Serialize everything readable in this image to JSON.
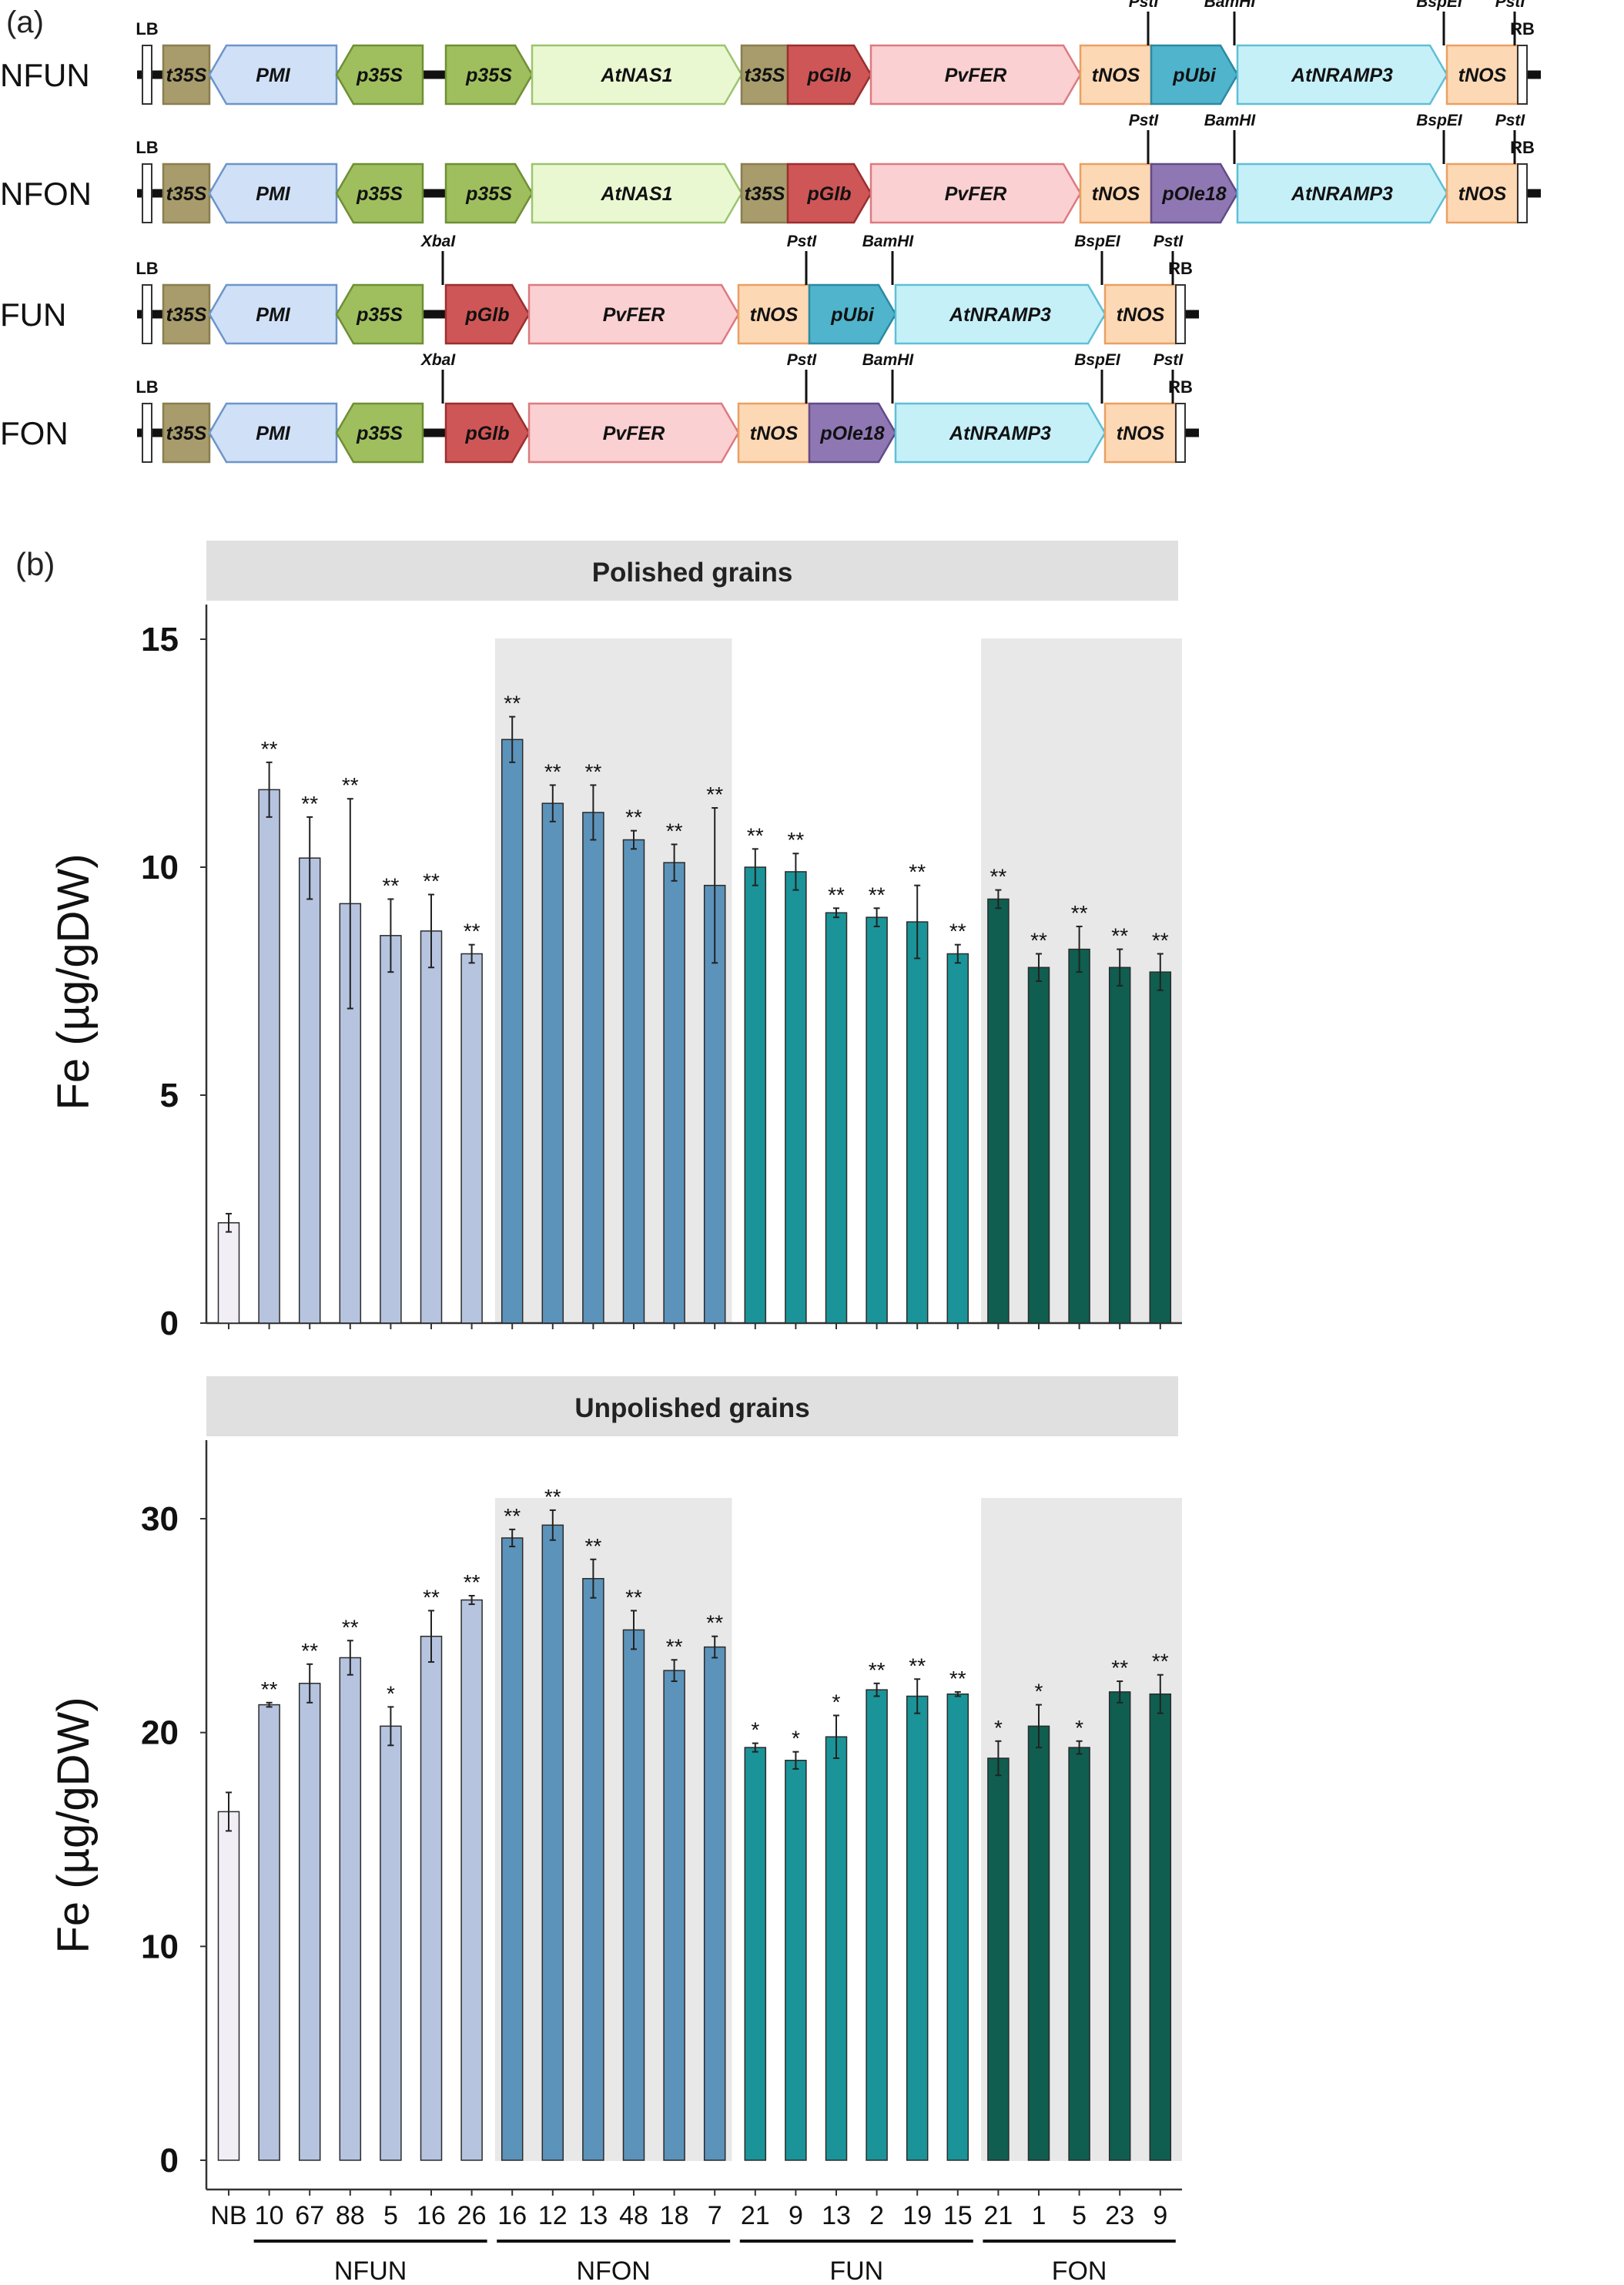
{
  "panel_a": {
    "label": "(a)",
    "constructs": [
      {
        "name": "NFUN",
        "elements": [
          {
            "label": "LB",
            "type": "border"
          },
          {
            "label": "t35S",
            "type": "t35s"
          },
          {
            "label": "PMI",
            "type": "pmi",
            "dir": "left"
          },
          {
            "label": "p35S",
            "type": "p35s",
            "dir": "left"
          },
          {
            "label": "p35S",
            "type": "p35s",
            "dir": "right"
          },
          {
            "label": "AtNAS1",
            "type": "nas",
            "dir": "right"
          },
          {
            "label": "t35S",
            "type": "t35s"
          },
          {
            "label": "pGlb",
            "type": "pglb",
            "dir": "right"
          },
          {
            "label": "PvFER",
            "type": "fer",
            "dir": "right"
          },
          {
            "label": "tNOS",
            "type": "tnos"
          },
          {
            "label": "pUbi",
            "type": "pubi",
            "dir": "right"
          },
          {
            "label": "AtNRAMP3",
            "type": "nramp",
            "dir": "right"
          },
          {
            "label": "tNOS",
            "type": "tnos"
          },
          {
            "label": "RB",
            "type": "border"
          }
        ],
        "sites": [
          "PstI",
          "BamHI",
          "BspEI",
          "PstI"
        ]
      },
      {
        "name": "NFON",
        "elements": [
          {
            "label": "LB",
            "type": "border"
          },
          {
            "label": "t35S",
            "type": "t35s"
          },
          {
            "label": "PMI",
            "type": "pmi",
            "dir": "left"
          },
          {
            "label": "p35S",
            "type": "p35s",
            "dir": "left"
          },
          {
            "label": "p35S",
            "type": "p35s",
            "dir": "right"
          },
          {
            "label": "AtNAS1",
            "type": "nas",
            "dir": "right"
          },
          {
            "label": "t35S",
            "type": "t35s"
          },
          {
            "label": "pGlb",
            "type": "pglb",
            "dir": "right"
          },
          {
            "label": "PvFER",
            "type": "fer",
            "dir": "right"
          },
          {
            "label": "tNOS",
            "type": "tnos"
          },
          {
            "label": "pOle18",
            "type": "pole",
            "dir": "right"
          },
          {
            "label": "AtNRAMP3",
            "type": "nramp",
            "dir": "right"
          },
          {
            "label": "tNOS",
            "type": "tnos"
          },
          {
            "label": "RB",
            "type": "border"
          }
        ],
        "sites": [
          "PstI",
          "BamHI",
          "BspEI",
          "PstI"
        ]
      },
      {
        "name": "FUN",
        "elements": [
          {
            "label": "LB",
            "type": "border"
          },
          {
            "label": "t35S",
            "type": "t35s"
          },
          {
            "label": "PMI",
            "type": "pmi",
            "dir": "left"
          },
          {
            "label": "p35S",
            "type": "p35s",
            "dir": "left"
          },
          {
            "label": "pGlb",
            "type": "pglb",
            "dir": "right"
          },
          {
            "label": "PvFER",
            "type": "fer",
            "dir": "right"
          },
          {
            "label": "tNOS",
            "type": "tnos"
          },
          {
            "label": "pUbi",
            "type": "pubi",
            "dir": "right"
          },
          {
            "label": "AtNRAMP3",
            "type": "nramp",
            "dir": "right"
          },
          {
            "label": "tNOS",
            "type": "tnos"
          },
          {
            "label": "RB",
            "type": "border"
          }
        ],
        "sites": [
          "XbaI",
          "PstI",
          "BamHI",
          "BspEI",
          "PstI"
        ]
      },
      {
        "name": "FON",
        "elements": [
          {
            "label": "LB",
            "type": "border"
          },
          {
            "label": "t35S",
            "type": "t35s"
          },
          {
            "label": "PMI",
            "type": "pmi",
            "dir": "left"
          },
          {
            "label": "p35S",
            "type": "p35s",
            "dir": "left"
          },
          {
            "label": "pGlb",
            "type": "pglb",
            "dir": "right"
          },
          {
            "label": "PvFER",
            "type": "fer",
            "dir": "right"
          },
          {
            "label": "tNOS",
            "type": "tnos"
          },
          {
            "label": "pOle18",
            "type": "pole",
            "dir": "right"
          },
          {
            "label": "AtNRAMP3",
            "type": "nramp",
            "dir": "right"
          },
          {
            "label": "tNOS",
            "type": "tnos"
          },
          {
            "label": "RB",
            "type": "border"
          }
        ],
        "sites": [
          "XbaI",
          "PstI",
          "BamHI",
          "BspEI",
          "PstI"
        ]
      }
    ],
    "element_colors": {
      "t35s": {
        "fill": "#a89c6c",
        "stroke": "#8a7e50"
      },
      "pmi": {
        "fill": "#cfe0f7",
        "stroke": "#6d95c9"
      },
      "p35s": {
        "fill": "#9fbf5e",
        "stroke": "#6f8f35"
      },
      "nas": {
        "fill": "#eaf8d2",
        "stroke": "#9cc46e"
      },
      "pglb": {
        "fill": "#cf5656",
        "stroke": "#9b2f2f"
      },
      "fer": {
        "fill": "#fbd0d2",
        "stroke": "#dc7b80"
      },
      "tnos": {
        "fill": "#fdd8b4",
        "stroke": "#e9a063"
      },
      "pubi": {
        "fill": "#4fb4cc",
        "stroke": "#2b8aa3"
      },
      "pole": {
        "fill": "#8f77b3",
        "stroke": "#614b88"
      },
      "nramp": {
        "fill": "#c6f0f8",
        "stroke": "#5fbfd6"
      },
      "border": {
        "fill": "#ffffff",
        "stroke": "#333333"
      }
    }
  },
  "panel_b": {
    "label": "(b)"
  },
  "chart_data": [
    {
      "type": "bar",
      "title": "Polished grains",
      "ylabel": "Fe (µg/gDW)",
      "ylim": [
        0,
        15
      ],
      "yticks": [
        0,
        5,
        10,
        15
      ],
      "categories": [
        "NB",
        "10",
        "67",
        "88",
        "5",
        "16",
        "26",
        "16",
        "12",
        "13",
        "48",
        "18",
        "7",
        "21",
        "9",
        "13",
        "2",
        "19",
        "15",
        "21",
        "1",
        "5",
        "23",
        "9"
      ],
      "groups": [
        "NB",
        "NFUN",
        "NFUN",
        "NFUN",
        "NFUN",
        "NFUN",
        "NFUN",
        "NFON",
        "NFON",
        "NFON",
        "NFON",
        "NFON",
        "NFON",
        "FUN",
        "FUN",
        "FUN",
        "FUN",
        "FUN",
        "FUN",
        "FON",
        "FON",
        "FON",
        "FON",
        "FON"
      ],
      "values": [
        2.2,
        11.7,
        10.2,
        9.2,
        8.5,
        8.6,
        8.1,
        12.8,
        11.4,
        11.2,
        10.6,
        10.1,
        9.6,
        10.0,
        9.9,
        9.0,
        8.9,
        8.8,
        8.1,
        9.3,
        7.8,
        8.2,
        7.8,
        7.7
      ],
      "errors": [
        0.2,
        0.6,
        0.9,
        2.3,
        0.8,
        0.8,
        0.2,
        0.5,
        0.4,
        0.6,
        0.2,
        0.4,
        1.7,
        0.4,
        0.4,
        0.1,
        0.2,
        0.8,
        0.2,
        0.2,
        0.3,
        0.5,
        0.4,
        0.4
      ],
      "significance": [
        "",
        "**",
        "**",
        "**",
        "**",
        "**",
        "**",
        "**",
        "**",
        "**",
        "**",
        "**",
        "**",
        "**",
        "**",
        "**",
        "**",
        "**",
        "**",
        "**",
        "**",
        "**",
        "**",
        "**"
      ]
    },
    {
      "type": "bar",
      "title": "Unpolished grains",
      "ylabel": "Fe (µg/gDW)",
      "ylim": [
        0,
        31
      ],
      "yticks": [
        0,
        10,
        20,
        30
      ],
      "categories": [
        "NB",
        "10",
        "67",
        "88",
        "5",
        "16",
        "26",
        "16",
        "12",
        "13",
        "48",
        "18",
        "7",
        "21",
        "9",
        "13",
        "2",
        "19",
        "15",
        "21",
        "1",
        "5",
        "23",
        "9"
      ],
      "groups": [
        "NB",
        "NFUN",
        "NFUN",
        "NFUN",
        "NFUN",
        "NFUN",
        "NFUN",
        "NFON",
        "NFON",
        "NFON",
        "NFON",
        "NFON",
        "NFON",
        "FUN",
        "FUN",
        "FUN",
        "FUN",
        "FUN",
        "FUN",
        "FON",
        "FON",
        "FON",
        "FON",
        "FON"
      ],
      "values": [
        16.3,
        21.3,
        22.3,
        23.5,
        20.3,
        24.5,
        26.2,
        29.1,
        29.7,
        27.2,
        24.8,
        22.9,
        24.0,
        19.3,
        18.7,
        19.8,
        22.0,
        21.7,
        21.8,
        18.8,
        20.3,
        19.3,
        21.9,
        21.8
      ],
      "errors": [
        0.9,
        0.1,
        0.9,
        0.8,
        0.9,
        1.2,
        0.2,
        0.4,
        0.7,
        0.9,
        0.9,
        0.5,
        0.5,
        0.2,
        0.4,
        1.0,
        0.3,
        0.8,
        0.1,
        0.8,
        1.0,
        0.3,
        0.5,
        0.9
      ],
      "significance": [
        "",
        "**",
        "**",
        "**",
        "*",
        "**",
        "**",
        "**",
        "**",
        "**",
        "**",
        "**",
        "**",
        "*",
        "*",
        "*",
        "**",
        "**",
        "**",
        "*",
        "*",
        "*",
        "**",
        "**"
      ]
    }
  ],
  "x_groups": [
    {
      "name": "NFUN",
      "start": 1,
      "end": 6
    },
    {
      "name": "NFON",
      "start": 7,
      "end": 12
    },
    {
      "name": "FUN",
      "start": 13,
      "end": 18
    },
    {
      "name": "FON",
      "start": 19,
      "end": 23
    }
  ],
  "group_colors": {
    "NB": "#f2eef5",
    "NFUN": "#b6c4e0",
    "NFON": "#5c93bb",
    "FUN": "#1a9498",
    "FON": "#0f5e50"
  },
  "shade_color": "#e8e8e8"
}
